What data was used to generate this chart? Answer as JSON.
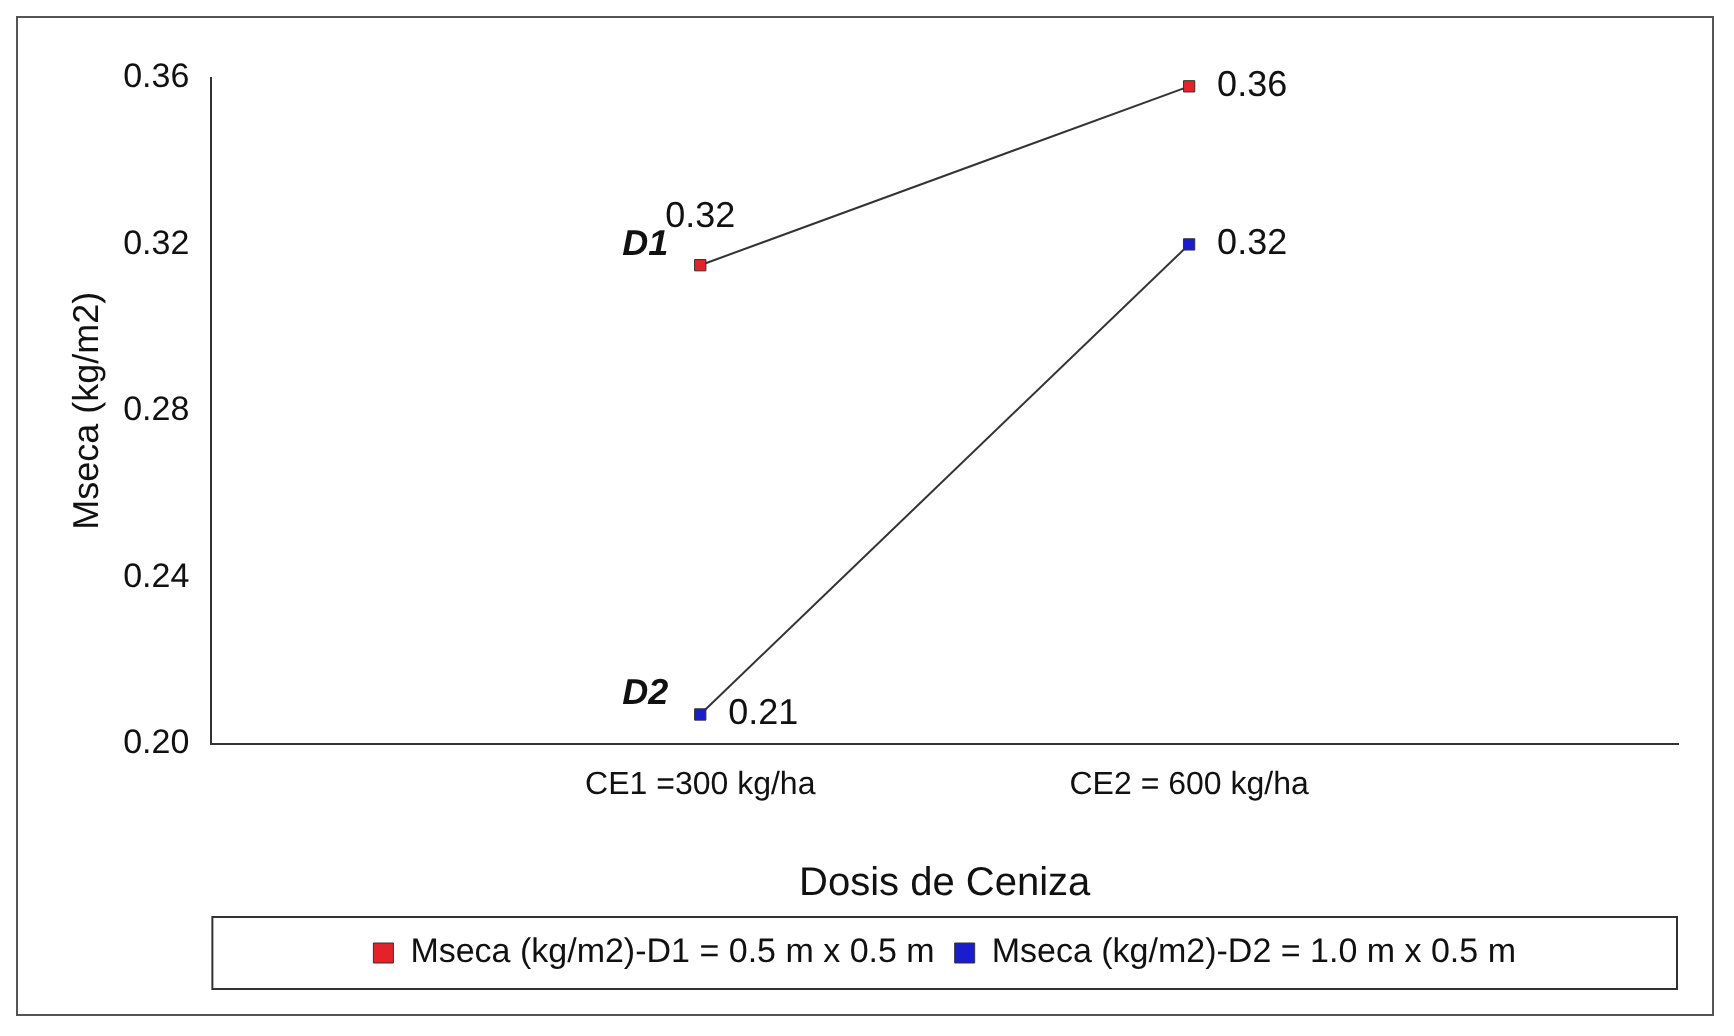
{
  "chart_data": {
    "type": "line",
    "xlabel": "Dosis de Ceniza",
    "ylabel": "Mseca (kg/m2)",
    "categories": [
      "CE1 =300 kg/ha",
      "CE2 = 600 kg/ha"
    ],
    "series": [
      {
        "name": "Mseca (kg/m2)-D1 = 0.5 m x 0.5 m",
        "color": "#e3222b",
        "values": [
          0.315,
          0.358
        ],
        "value_labels": [
          "0.32",
          "0.36"
        ]
      },
      {
        "name": "Mseca (kg/m2)-D2 = 1.0 m x 0.5 m",
        "color": "#1c1ccf",
        "values": [
          0.207,
          0.32
        ],
        "value_labels": [
          "0.21",
          "0.32"
        ]
      }
    ],
    "annotations": [
      {
        "text": "D1",
        "x": "CE1 =300 kg/ha",
        "y": 0.315
      },
      {
        "text": "D2",
        "x": "CE1 =300 kg/ha",
        "y": 0.207
      }
    ],
    "ylim": [
      0.2,
      0.36
    ],
    "yticks": [
      {
        "value": 0.2,
        "label": "0.20"
      },
      {
        "value": 0.24,
        "label": "0.24"
      },
      {
        "value": 0.28,
        "label": "0.28"
      },
      {
        "value": 0.32,
        "label": "0.32"
      },
      {
        "value": 0.36,
        "label": "0.36"
      }
    ],
    "grid": false,
    "legend": "bottom",
    "marker": "square",
    "line_style": "solid"
  }
}
